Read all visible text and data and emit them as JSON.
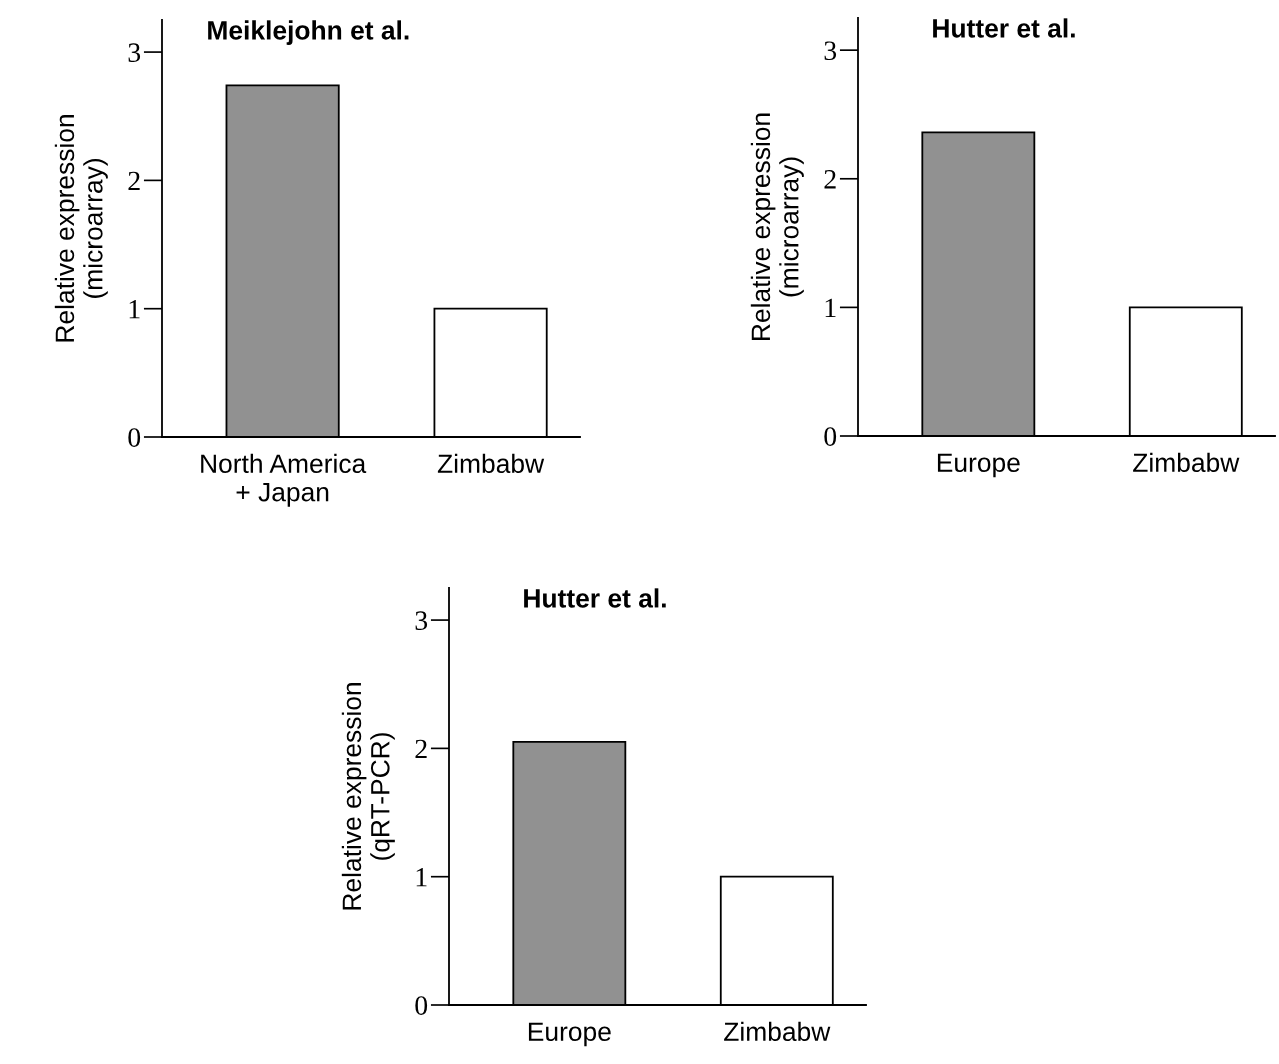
{
  "chart_data": [
    {
      "type": "bar",
      "title": "Meiklejohn et al.",
      "ylabel": "Relative expression\n(microarray)",
      "categories": [
        "North America\n+ Japan",
        "Zimbabw"
      ],
      "values": [
        2.74,
        1.0
      ],
      "colors": [
        "#919191",
        "#ffffff"
      ],
      "ylim": [
        0,
        3.25
      ],
      "yticks": [
        0,
        1,
        2,
        3
      ],
      "grid": false,
      "legend": false
    },
    {
      "type": "bar",
      "title": "Hutter et al.",
      "ylabel": "Relative expression\n(qRT-PCR)",
      "categories": [
        "Europe",
        "Zimbabw"
      ],
      "values": [
        2.05,
        1.0
      ],
      "colors": [
        "#919191",
        "#ffffff"
      ],
      "ylim": [
        0,
        3.25
      ],
      "yticks": [
        0,
        1,
        2,
        3
      ],
      "grid": false,
      "legend": false
    },
    {
      "type": "bar",
      "title": "Hutter et al.",
      "ylabel": "Relative expression\n(microarray)",
      "categories": [
        "Europe",
        "Zimbabw"
      ],
      "values": [
        2.36,
        1.0
      ],
      "colors": [
        "#919191",
        "#ffffff"
      ],
      "ylim": [
        0,
        3.25
      ],
      "yticks": [
        0,
        1,
        2,
        3
      ],
      "grid": false,
      "legend": false
    }
  ]
}
